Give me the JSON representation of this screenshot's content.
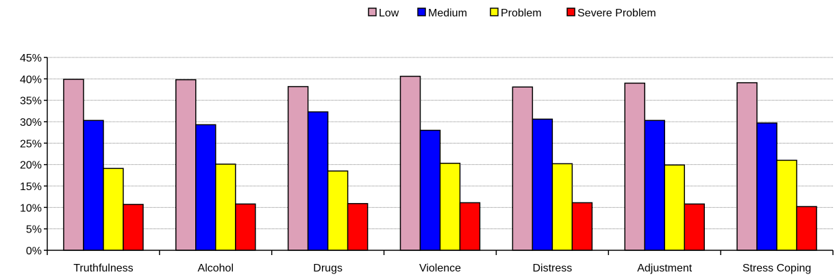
{
  "chart_data": {
    "type": "bar",
    "title": "",
    "xlabel": "",
    "ylabel": "",
    "categories": [
      "Truthfulness",
      "Alcohol",
      "Drugs",
      "Violence",
      "Distress",
      "Adjustment",
      "Stress Coping"
    ],
    "series": [
      {
        "name": "Low",
        "color": "#dda0b8",
        "values": [
          39.9,
          39.8,
          38.2,
          40.6,
          38.1,
          39.0,
          39.1
        ]
      },
      {
        "name": "Medium",
        "color": "#0000ff",
        "values": [
          30.3,
          29.3,
          32.3,
          28.0,
          30.6,
          30.3,
          29.7
        ]
      },
      {
        "name": "Problem",
        "color": "#ffff00",
        "values": [
          19.1,
          20.1,
          18.5,
          20.3,
          20.2,
          19.9,
          21.0
        ]
      },
      {
        "name": "Severe Problem",
        "color": "#ff0000",
        "values": [
          10.7,
          10.8,
          10.9,
          11.1,
          11.1,
          10.8,
          10.2
        ]
      }
    ],
    "ylim": [
      0,
      45
    ],
    "yticks": [
      0,
      5,
      10,
      15,
      20,
      25,
      30,
      35,
      40,
      45
    ],
    "ytick_labels": [
      "0%",
      "5%",
      "10%",
      "15%",
      "20%",
      "25%",
      "30%",
      "35%",
      "40%",
      "45%"
    ],
    "grid": "horizontal-dotted",
    "legend_position": "top-right"
  }
}
